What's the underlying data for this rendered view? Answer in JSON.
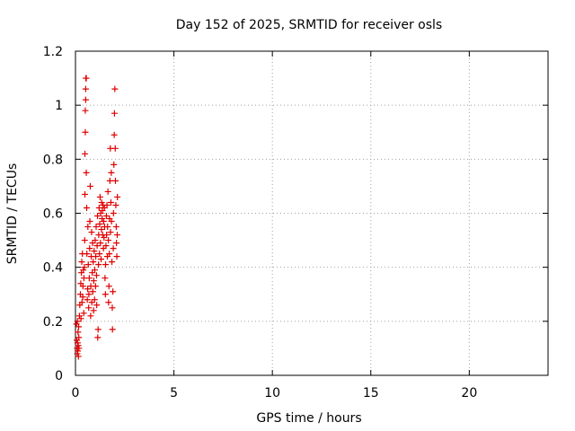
{
  "chart_data": {
    "type": "scatter",
    "title": "Day 152 of 2025, SRMTID for receiver osls",
    "xlabel": "GPS time / hours",
    "ylabel": "SRMTID / TECUs",
    "xlim": [
      0,
      24
    ],
    "ylim": [
      0,
      1.2
    ],
    "x_ticks": [
      0,
      5,
      10,
      15,
      20
    ],
    "x_tick_labels": [
      "0",
      "5",
      "10",
      "15",
      "20"
    ],
    "y_ticks": [
      0,
      0.2,
      0.4,
      0.6,
      0.8,
      1,
      1.2
    ],
    "y_tick_labels": [
      "0",
      "0.2",
      "0.4",
      "0.6",
      "0.8",
      "1",
      "1.2"
    ],
    "grid": true,
    "marker": "plus",
    "color": "#e00000",
    "series": [
      {
        "name": "SRMTID",
        "points": [
          [
            0.05,
            0.19
          ],
          [
            0.07,
            0.13
          ],
          [
            0.08,
            0.1
          ],
          [
            0.09,
            0.08
          ],
          [
            0.1,
            0.2
          ],
          [
            0.11,
            0.12
          ],
          [
            0.12,
            0.09
          ],
          [
            0.13,
            0.16
          ],
          [
            0.14,
            0.11
          ],
          [
            0.15,
            0.07
          ],
          [
            0.16,
            0.18
          ],
          [
            0.17,
            0.14
          ],
          [
            0.18,
            0.1
          ],
          [
            0.2,
            0.22
          ],
          [
            0.22,
            0.26
          ],
          [
            0.25,
            0.3
          ],
          [
            0.27,
            0.34
          ],
          [
            0.28,
            0.21
          ],
          [
            0.3,
            0.38
          ],
          [
            0.32,
            0.42
          ],
          [
            0.33,
            0.27
          ],
          [
            0.35,
            0.45
          ],
          [
            0.37,
            0.29
          ],
          [
            0.38,
            0.33
          ],
          [
            0.4,
            0.39
          ],
          [
            0.42,
            0.23
          ],
          [
            0.43,
            0.36
          ],
          [
            0.45,
            0.4
          ],
          [
            0.47,
            0.5
          ],
          [
            0.48,
            0.67
          ],
          [
            0.48,
            0.82
          ],
          [
            0.5,
            0.9
          ],
          [
            0.5,
            0.98
          ],
          [
            0.52,
            1.02
          ],
          [
            0.52,
            1.06
          ],
          [
            0.53,
            1.1
          ],
          [
            0.55,
            1.1
          ],
          [
            0.55,
            0.75
          ],
          [
            0.57,
            0.62
          ],
          [
            0.58,
            0.45
          ],
          [
            0.6,
            0.28
          ],
          [
            0.62,
            0.32
          ],
          [
            0.63,
            0.55
          ],
          [
            0.65,
            0.41
          ],
          [
            0.67,
            0.25
          ],
          [
            0.68,
            0.3
          ],
          [
            0.7,
            0.36
          ],
          [
            0.72,
            0.47
          ],
          [
            0.73,
            0.57
          ],
          [
            0.75,
            0.7
          ],
          [
            0.77,
            0.22
          ],
          [
            0.78,
            0.33
          ],
          [
            0.8,
            0.44
          ],
          [
            0.82,
            0.53
          ],
          [
            0.83,
            0.27
          ],
          [
            0.85,
            0.38
          ],
          [
            0.87,
            0.49
          ],
          [
            0.88,
            0.31
          ],
          [
            0.9,
            0.42
          ],
          [
            0.92,
            0.24
          ],
          [
            0.93,
            0.35
          ],
          [
            0.95,
            0.46
          ],
          [
            0.97,
            0.28
          ],
          [
            0.98,
            0.39
          ],
          [
            1.0,
            0.5
          ],
          [
            1.02,
            0.33
          ],
          [
            1.03,
            0.44
          ],
          [
            1.05,
            0.55
          ],
          [
            1.07,
            0.37
          ],
          [
            1.08,
            0.26
          ],
          [
            1.1,
            0.48
          ],
          [
            1.12,
            0.59
          ],
          [
            1.13,
            0.14
          ],
          [
            1.15,
            0.17
          ],
          [
            1.17,
            0.41
          ],
          [
            1.18,
            0.52
          ],
          [
            1.2,
            0.62
          ],
          [
            1.22,
            0.45
          ],
          [
            1.23,
            0.56
          ],
          [
            1.25,
            0.66
          ],
          [
            1.27,
            0.49
          ],
          [
            1.28,
            0.6
          ],
          [
            1.3,
            0.43
          ],
          [
            1.32,
            0.54
          ],
          [
            1.33,
            0.64
          ],
          [
            1.35,
            0.58
          ],
          [
            1.37,
            0.61
          ],
          [
            1.38,
            0.52
          ],
          [
            1.4,
            0.63
          ],
          [
            1.42,
            0.47
          ],
          [
            1.43,
            0.57
          ],
          [
            1.45,
            0.51
          ],
          [
            1.47,
            0.62
          ],
          [
            1.48,
            0.55
          ],
          [
            1.5,
            0.36
          ],
          [
            1.52,
            0.3
          ],
          [
            1.53,
            0.41
          ],
          [
            1.55,
            0.48
          ],
          [
            1.57,
            0.59
          ],
          [
            1.58,
            0.52
          ],
          [
            1.6,
            0.63
          ],
          [
            1.62,
            0.44
          ],
          [
            1.63,
            0.55
          ],
          [
            1.65,
            0.68
          ],
          [
            1.67,
            0.5
          ],
          [
            1.68,
            0.27
          ],
          [
            1.7,
            0.33
          ],
          [
            1.72,
            0.45
          ],
          [
            1.73,
            0.58
          ],
          [
            1.75,
            0.72
          ],
          [
            1.77,
            0.84
          ],
          [
            1.78,
            0.53
          ],
          [
            1.8,
            0.64
          ],
          [
            1.82,
            0.75
          ],
          [
            1.83,
            0.57
          ],
          [
            1.85,
            0.42
          ],
          [
            1.87,
            0.25
          ],
          [
            1.88,
            0.17
          ],
          [
            1.9,
            0.31
          ],
          [
            1.92,
            0.47
          ],
          [
            1.93,
            0.6
          ],
          [
            1.95,
            0.78
          ],
          [
            1.97,
            0.89
          ],
          [
            1.98,
            0.97
          ],
          [
            2.0,
            1.06
          ],
          [
            2.02,
            0.84
          ],
          [
            2.03,
            0.72
          ],
          [
            2.05,
            0.63
          ],
          [
            2.07,
            0.55
          ],
          [
            2.08,
            0.49
          ],
          [
            2.1,
            0.44
          ],
          [
            2.12,
            0.52
          ],
          [
            2.13,
            0.66
          ]
        ]
      }
    ]
  }
}
